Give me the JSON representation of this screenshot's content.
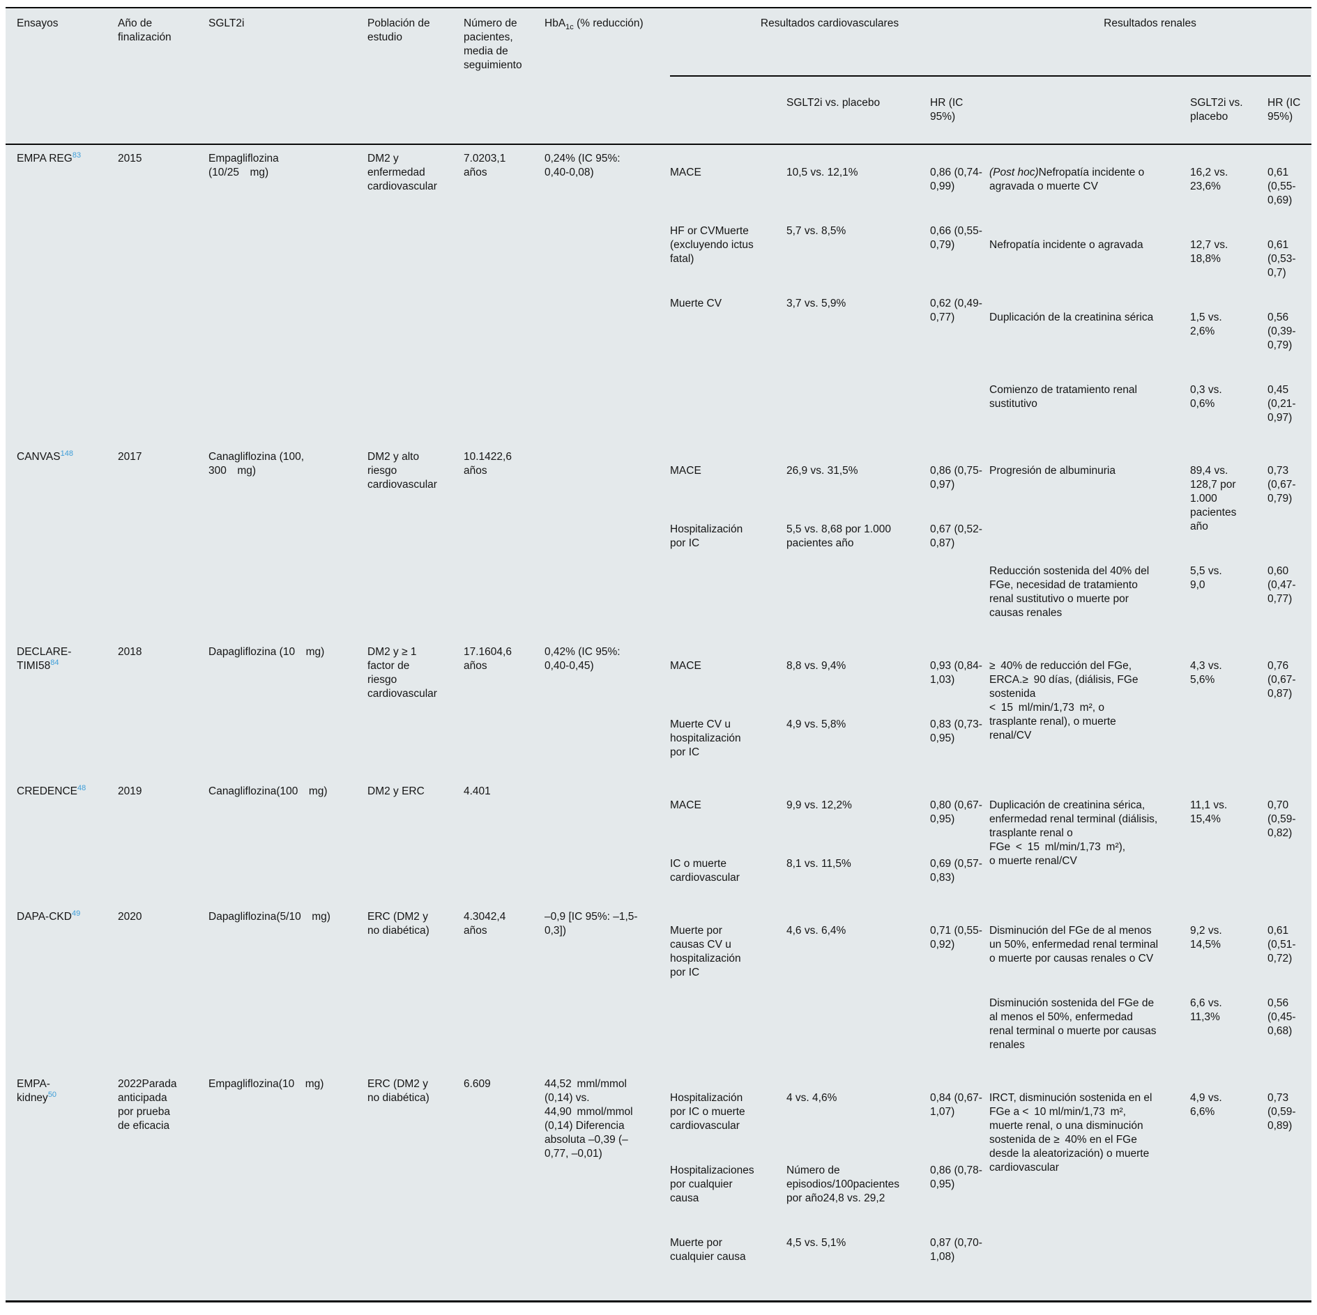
{
  "header": {
    "ensayos": "Ensayos",
    "anio": "Año de\nfinalización",
    "sglt2i": "SGLT2i",
    "poblacion": "Población de\nestudio",
    "numero": "Número de\npacientes,\nmedia de\nseguimiento",
    "hba1c": {
      "pre": "HbA",
      "sub": "1c",
      "post": " (% reducción)"
    },
    "grupo_cv": "Resultados cardiovasculares",
    "grupo_renal": "Resultados renales",
    "sub_vs": "SGLT2i vs. placebo",
    "sub_hr": "HR (IC\n95%)"
  },
  "rows": [
    {
      "trial": {
        "name": "EMPA REG",
        "ref": "83"
      },
      "year": "2015",
      "sglt2i": "Empagliflozina\n(10/25 mg)",
      "population": "DM2 y\nenfermedad\ncardiovascular",
      "patients": "7.0203,1\naños",
      "hba1c": "0,24% (IC 95%:\n0,40-0,08)",
      "cv": [
        {
          "outcome": "MACE",
          "vs": "10,5 vs. 12,1%",
          "hr": "0,86 (0,74-0,99)"
        },
        {
          "outcome": "HF or CVMuerte\n(excluyendo ictus\nfatal)",
          "vs": "5,7 vs. 8,5%",
          "hr": "0,66 (0,55-0,79)"
        },
        {
          "outcome": "Muerte CV",
          "vs": "3,7 vs. 5,9%",
          "hr": "0,62 (0,49-0,77)"
        }
      ],
      "renal": [
        {
          "italic": "(Post hoc)",
          "outcome": "Nefropatía incidente o\nagravada o muerte CV",
          "vs": "16,2 vs.\n23,6%",
          "hr": "0,61 (0,55-0,69)"
        },
        {
          "outcome": "Nefropatía incidente o agravada",
          "vs": "12,7 vs.\n18,8%",
          "hr": "0,61 (0,53-0,7)"
        },
        {
          "outcome": "Duplicación de la creatinina sérica",
          "vs": "1,5 vs.\n2,6%",
          "hr": "0,56 (0,39-0,79)"
        },
        {
          "outcome": "Comienzo de tratamiento renal\nsustitutivo",
          "vs": "0,3 vs.\n0,6%",
          "hr": "0,45 (0,21-0,97)"
        }
      ]
    },
    {
      "trial": {
        "name": "CANVAS",
        "ref": "148"
      },
      "year": "2017",
      "sglt2i": "Canagliflozina (100,\n300 mg)",
      "population": "DM2 y alto\nriesgo\ncardiovascular",
      "patients": "10.1422,6\naños",
      "hba1c": "",
      "cv": [
        {
          "outcome": "MACE",
          "vs": "26,9 vs. 31,5%",
          "hr": "0,86 (0,75-0,97)"
        },
        {
          "outcome": "Hospitalización\npor IC",
          "vs": "5,5 vs. 8,68 por 1.000\npacientes año",
          "hr": "0,67 (0,52-0,87)"
        }
      ],
      "renal": [
        {
          "outcome": "Progresión de albuminuria",
          "vs": "89,4 vs.\n128,7 por\n1.000\npacientes\naño",
          "hr": "0,73 (0,67-0,79)"
        },
        {
          "outcome": "Reducción sostenida del 40% del\nFGe, necesidad de tratamiento\nrenal sustitutivo o muerte por\ncausas renales",
          "vs": "5,5 vs.\n9,0",
          "hr": "0,60 (0,47-0,77)"
        }
      ]
    },
    {
      "trial": {
        "name": "DECLARE-\nTIMI58",
        "ref": "84"
      },
      "year": "2018",
      "sglt2i": "Dapagliflozina (10 mg)",
      "population": "DM2 y ≥ 1\nfactor de\nriesgo\ncardiovascular",
      "patients": "17.1604,6\naños",
      "hba1c": "0,42% (IC 95%:\n0,40-0,45)",
      "cv": [
        {
          "outcome": "MACE",
          "vs": "8,8 vs. 9,4%",
          "hr": "0,93 (0,84-1,03)"
        },
        {
          "outcome": "Muerte CV u\nhospitalización\npor IC",
          "vs": "4,9 vs. 5,8%",
          "hr": "0,83 (0,73-0,95)"
        }
      ],
      "renal": [
        {
          "outcome": "≥ 40% de reducción del FGe,\nERCA.≥ 90 días, (diálisis, FGe\nsostenida\n< 15 ml/min/1,73 m², o\ntrasplante renal), o muerte\nrenal/CV",
          "vs": "4,3 vs.\n5,6%",
          "hr": "0,76 (0,67-0,87)"
        }
      ]
    },
    {
      "trial": {
        "name": "CREDENCE",
        "ref": "48"
      },
      "year": "2019",
      "sglt2i": "Canagliflozina(100 mg)",
      "population": "DM2 y ERC",
      "patients": "4.401",
      "hba1c": "",
      "cv": [
        {
          "outcome": "MACE",
          "vs": "9,9 vs. 12,2%",
          "hr": "0,80 (0,67-0,95)"
        },
        {
          "outcome": "IC o muerte\ncardiovascular",
          "vs": "8,1 vs. 11,5%",
          "hr": "0,69 (0,57-0,83)"
        }
      ],
      "renal": [
        {
          "outcome": "Duplicación de creatinina sérica,\nenfermedad renal terminal (diálisis,\ntrasplante renal o\nFGe < 15 ml/min/1,73 m²),\no muerte renal/CV",
          "vs": "11,1 vs.\n15,4%",
          "hr": "0,70 (0,59-0,82)"
        }
      ]
    },
    {
      "trial": {
        "name": "DAPA-CKD",
        "ref": "49"
      },
      "year": "2020",
      "sglt2i": "Dapagliflozina(5/10 mg)",
      "population": "ERC (DM2 y\nno diabética)",
      "patients": "4.3042,4\naños",
      "hba1c": "–0,9 [IC 95%: –1,5-\n0,3])",
      "cv": [
        {
          "outcome": "Muerte por\ncausas CV u\nhospitalización\npor IC",
          "vs": "4,6 vs. 6,4%",
          "hr": "0,71 (0,55-0,92)"
        }
      ],
      "renal": [
        {
          "outcome": "Disminución del FGe de al menos\nun 50%, enfermedad renal terminal\no muerte por causas renales o CV",
          "vs": "9,2 vs.\n14,5%",
          "hr": "0,61 (0,51-0,72)"
        },
        {
          "outcome": "Disminución sostenida del FGe de\nal menos el 50%, enfermedad\nrenal terminal o muerte por causas\nrenales",
          "vs": "6,6 vs.\n11,3%",
          "hr": "0,56 (0,45-0,68)"
        }
      ]
    },
    {
      "trial": {
        "name": "EMPA-\nkidney",
        "ref": "50"
      },
      "year": "2022Parada\nanticipada\npor prueba\nde eficacia",
      "sglt2i": "Empagliflozina(10 mg)",
      "population": "ERC (DM2 y\nno diabética)",
      "patients": "6.609",
      "hba1c": "44,52 mml/mmol\n(0,14) vs.\n44,90 mmol/mmol\n(0,14) Diferencia\nabsoluta –0,39 (–\n0,77, –0,01)",
      "cv": [
        {
          "outcome": "Hospitalización\npor IC o muerte\ncardiovascular",
          "vs": "4 vs. 4,6%",
          "hr": "0,84 (0,67-1,07)"
        },
        {
          "outcome": "Hospitalizaciones\npor cualquier\ncausa",
          "vs": "Número de\nepisodios/100pacientes\npor año24,8 vs. 29,2",
          "hr": "0,86 (0,78-0,95)"
        },
        {
          "outcome": "Muerte por\ncualquier causa",
          "vs": "4,5 vs. 5,1%",
          "hr": "0,87 (0,70-1,08)"
        }
      ],
      "renal": [
        {
          "outcome": "IRCT, disminución sostenida en el\nFGe a < 10 ml/min/1,73 m²,\nmuerte renal, o una disminución\nsostenida de ≥ 40% en el FGe\ndesde la aleatorización) o muerte\ncardiovascular",
          "vs": "4,9 vs.\n6,6%",
          "hr": "0,73 (0,59-0,89)"
        }
      ]
    }
  ]
}
